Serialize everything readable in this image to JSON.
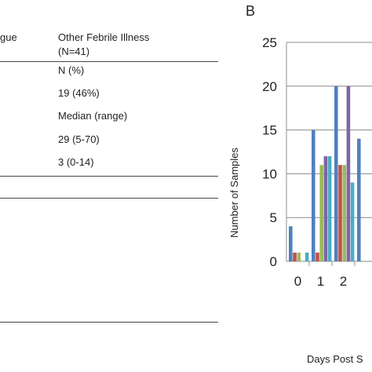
{
  "table": {
    "header_partial": "gue",
    "other_col": {
      "title": "Other Febrile Illness",
      "n": "(N=41)",
      "rows": [
        "N (%)",
        "19 (46%)",
        "Median (range)",
        "29 (5-70)",
        "3 (0-14)"
      ]
    }
  },
  "chart_panel_letter": "B",
  "chart_data": {
    "type": "bar",
    "title": "",
    "ylabel": "Number of Samples",
    "xlabel": "Days Post S",
    "categories": [
      "0",
      "1",
      "2"
    ],
    "ylim": [
      0,
      25
    ],
    "yticks": [
      "0",
      "5",
      "10",
      "15",
      "20",
      "25"
    ],
    "grid": true,
    "colors": [
      "#4f81bd",
      "#c0504d",
      "#9bbb59",
      "#8064a2",
      "#4bacc6"
    ],
    "series": [
      {
        "values": [
          4,
          15,
          20
        ]
      },
      {
        "values": [
          1,
          1,
          11
        ]
      },
      {
        "values": [
          1,
          11,
          11
        ]
      },
      {
        "values": [
          0,
          12,
          20
        ]
      },
      {
        "values": [
          1,
          12,
          9
        ]
      }
    ],
    "partial_next_bar": 14
  }
}
